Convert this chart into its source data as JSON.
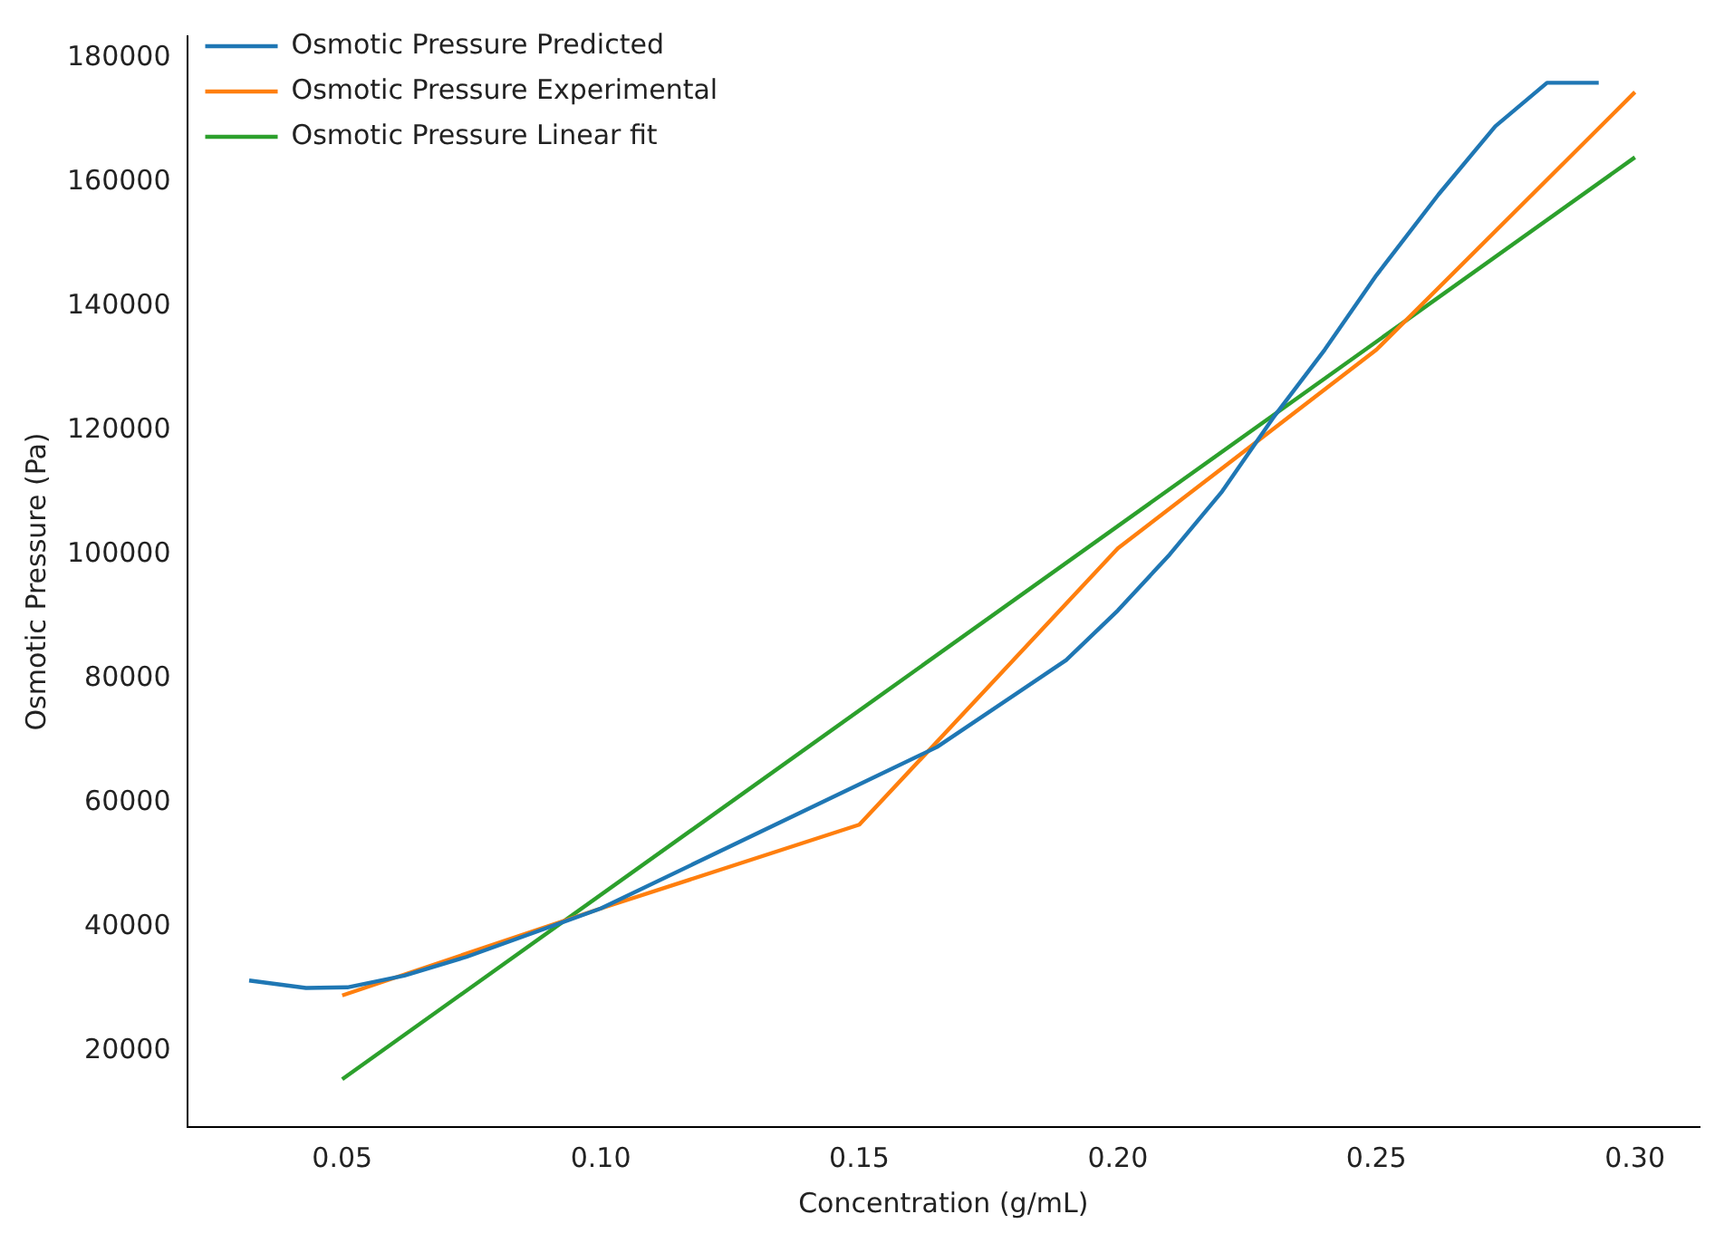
{
  "chart_data": {
    "type": "line",
    "xlabel": "Concentration (g/mL)",
    "ylabel": "Osmotic Pressure (Pa)",
    "xlim": [
      0.02,
      0.3125
    ],
    "ylim": [
      7800,
      183500
    ],
    "xticks": [
      {
        "value": 0.05,
        "label": "0.05"
      },
      {
        "value": 0.1,
        "label": "0.10"
      },
      {
        "value": 0.15,
        "label": "0.15"
      },
      {
        "value": 0.2,
        "label": "0.20"
      },
      {
        "value": 0.25,
        "label": "0.25"
      },
      {
        "value": 0.3,
        "label": "0.30"
      }
    ],
    "yticks": [
      20000,
      40000,
      60000,
      80000,
      100000,
      120000,
      140000,
      160000,
      180000
    ],
    "grid": false,
    "legend": "top left",
    "marker": "none",
    "line_style": "solid",
    "series": [
      {
        "name": "Osmotic Pressure Predicted",
        "color": "#1f77b4",
        "x": [
          0.032,
          0.043,
          0.051,
          0.062,
          0.074,
          0.1,
          0.15,
          0.165,
          0.19,
          0.2,
          0.21,
          0.22,
          0.23,
          0.24,
          0.25,
          0.262,
          0.273,
          0.283,
          0.293
        ],
        "values": [
          31400,
          30200,
          30300,
          32200,
          35200,
          43000,
          63000,
          69000,
          83000,
          91000,
          100000,
          110000,
          122000,
          133000,
          145000,
          158000,
          169000,
          176000,
          176000
        ]
      },
      {
        "name": "Osmotic Pressure Experimental",
        "color": "#ff7f0e",
        "x": [
          0.05,
          0.1,
          0.15,
          0.2,
          0.25,
          0.3
        ],
        "values": [
          29000,
          43000,
          56500,
          101000,
          133000,
          174500
        ]
      },
      {
        "name": "Osmotic Pressure Linear fit",
        "color": "#2ca02c",
        "x": [
          0.05,
          0.3
        ],
        "values": [
          15500,
          164000
        ]
      }
    ]
  }
}
